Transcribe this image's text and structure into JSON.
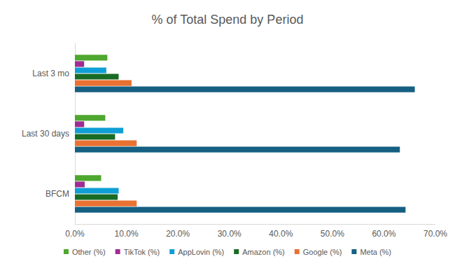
{
  "chart_data": {
    "type": "bar",
    "title": "% of Total Spend by Period",
    "orientation": "horizontal",
    "categories": [
      "BFCM",
      "Last 30 days",
      "Last 3 mo"
    ],
    "series": [
      {
        "name": "Other (%)",
        "color": "#4ea72e",
        "values": [
          5.1,
          5.9,
          6.3
        ]
      },
      {
        "name": "TikTok (%)",
        "color": "#a02b93",
        "values": [
          1.9,
          1.8,
          1.8
        ]
      },
      {
        "name": "AppLovin (%)",
        "color": "#0f9ed5",
        "values": [
          8.5,
          9.4,
          6.1
        ]
      },
      {
        "name": "Amazon (%)",
        "color": "#196b24",
        "values": [
          8.3,
          7.8,
          8.5
        ]
      },
      {
        "name": "Google (%)",
        "color": "#e97132",
        "values": [
          12.0,
          12.0,
          11.0
        ]
      },
      {
        "name": "Meta (%)",
        "color": "#156082",
        "values": [
          64.2,
          63.1,
          66.0
        ]
      }
    ],
    "xlim": [
      0,
      70
    ],
    "xticks": [
      {
        "value": 0,
        "label": "0.0%"
      },
      {
        "value": 10,
        "label": "10.0%"
      },
      {
        "value": 20,
        "label": "20.0%"
      },
      {
        "value": 30,
        "label": "30.0%"
      },
      {
        "value": 40,
        "label": "40.0%"
      },
      {
        "value": 50,
        "label": "50.0%"
      },
      {
        "value": 60,
        "label": "60.0%"
      },
      {
        "value": 70,
        "label": "70.0%"
      }
    ],
    "grid": false,
    "legend": "bottom"
  }
}
